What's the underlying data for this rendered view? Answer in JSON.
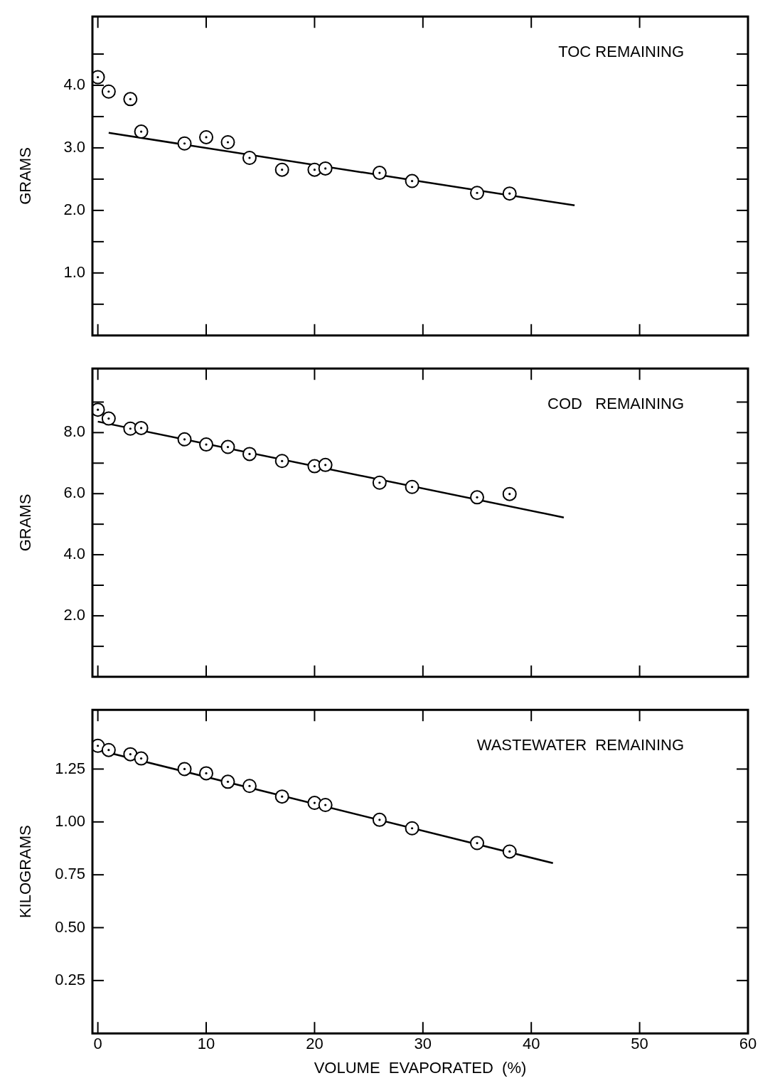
{
  "chart_data": [
    {
      "type": "scatter",
      "title": "TOC REMAINING",
      "ylabel": "GRAMS",
      "xlim": [
        -0.5,
        60
      ],
      "xticks": [
        0,
        10,
        20,
        30,
        40,
        50,
        60
      ],
      "ylim": [
        0,
        5.1
      ],
      "yticks": [
        {
          "value": 0.5,
          "label": null
        },
        {
          "value": 1,
          "label": "1.0"
        },
        {
          "value": 1.5,
          "label": null
        },
        {
          "value": 2,
          "label": "2.0"
        },
        {
          "value": 2.5,
          "label": null
        },
        {
          "value": 3,
          "label": "3.0"
        },
        {
          "value": 3.5,
          "label": null
        },
        {
          "value": 4,
          "label": "4.0"
        },
        {
          "value": 4.5,
          "label": null
        }
      ],
      "grid": false,
      "legend": false,
      "tick_labels": "y",
      "series": [
        {
          "color": "#000000",
          "marker": "circle",
          "x": [
            0,
            1,
            3,
            4,
            8,
            10,
            12,
            14,
            17,
            20,
            21,
            26,
            29,
            35,
            38
          ],
          "values": [
            4.13,
            3.9,
            3.78,
            3.26,
            3.07,
            3.17,
            3.09,
            2.84,
            2.65,
            2.65,
            2.67,
            2.6,
            2.47,
            2.28,
            2.27
          ]
        },
        {
          "type": "line",
          "color": "#000000",
          "marker": "none",
          "line_style": "solid",
          "x": [
            1,
            44
          ],
          "values": [
            3.24,
            2.08
          ]
        }
      ]
    },
    {
      "type": "scatter",
      "title": "COD   REMAINING",
      "ylabel": "GRAMS",
      "xlim": [
        -0.5,
        60
      ],
      "xticks": [
        0,
        10,
        20,
        30,
        40,
        50,
        60
      ],
      "ylim": [
        0,
        10.1
      ],
      "yticks": [
        {
          "value": 1,
          "label": null
        },
        {
          "value": 2,
          "label": "2.0"
        },
        {
          "value": 3,
          "label": null
        },
        {
          "value": 4,
          "label": "4.0"
        },
        {
          "value": 5,
          "label": null
        },
        {
          "value": 6,
          "label": "6.0"
        },
        {
          "value": 7,
          "label": null
        },
        {
          "value": 8,
          "label": "8.0"
        },
        {
          "value": 9,
          "label": null
        }
      ],
      "grid": false,
      "legend": false,
      "tick_labels": "y",
      "series": [
        {
          "color": "#000000",
          "marker": "circle",
          "x": [
            0,
            1,
            3,
            4,
            8,
            10,
            12,
            14,
            17,
            20,
            21,
            26,
            29,
            35,
            38
          ],
          "values": [
            8.75,
            8.46,
            8.13,
            8.15,
            7.78,
            7.61,
            7.53,
            7.3,
            7.07,
            6.9,
            6.94,
            6.36,
            6.22,
            5.88,
            5.99
          ]
        },
        {
          "type": "line",
          "color": "#000000",
          "marker": "none",
          "line_style": "solid",
          "x": [
            0,
            43
          ],
          "values": [
            8.36,
            5.22
          ]
        }
      ]
    },
    {
      "type": "scatter",
      "title": "WASTEWATER  REMAINING",
      "ylabel": "KILOGRAMS",
      "xlabel": "VOLUME  EVAPORATED  (%)",
      "xlim": [
        -0.5,
        60
      ],
      "xticks": [
        0,
        10,
        20,
        30,
        40,
        50,
        60
      ],
      "ylim": [
        0,
        1.53
      ],
      "yticks": [
        0.25,
        {
          "value": 0.5,
          "label": "0.50"
        },
        0.75,
        {
          "value": 1,
          "label": "1.00"
        },
        1.25
      ],
      "grid": false,
      "legend": false,
      "series": [
        {
          "color": "#000000",
          "marker": "circle",
          "x": [
            0,
            1,
            3,
            4,
            8,
            10,
            12,
            14,
            17,
            20,
            21,
            26,
            29,
            35,
            38
          ],
          "values": [
            1.36,
            1.34,
            1.32,
            1.3,
            1.25,
            1.23,
            1.19,
            1.17,
            1.12,
            1.09,
            1.08,
            1.01,
            0.97,
            0.9,
            0.86
          ]
        },
        {
          "type": "line",
          "color": "#000000",
          "marker": "none",
          "line_style": "solid",
          "x": [
            0,
            42
          ],
          "values": [
            1.34,
            0.805
          ]
        }
      ]
    }
  ]
}
